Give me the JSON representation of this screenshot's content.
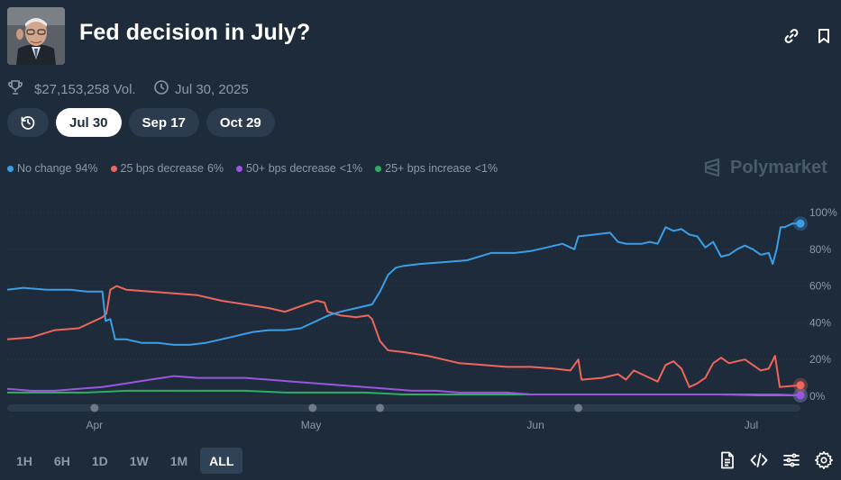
{
  "header": {
    "title": "Fed decision in July?",
    "volume": "$27,153,258 Vol.",
    "date": "Jul 30, 2025",
    "icons": [
      "link-icon",
      "bookmark-icon",
      "trophy-icon",
      "clock-icon"
    ]
  },
  "tabs": [
    {
      "label": "Jul 30",
      "active": true
    },
    {
      "label": "Sep 17",
      "active": false
    },
    {
      "label": "Oct 29",
      "active": false
    }
  ],
  "brand": "Polymarket",
  "range_buttons": [
    {
      "label": "1H",
      "active": false
    },
    {
      "label": "6H",
      "active": false
    },
    {
      "label": "1D",
      "active": false
    },
    {
      "label": "1W",
      "active": false
    },
    {
      "label": "1M",
      "active": false
    },
    {
      "label": "ALL",
      "active": true
    }
  ],
  "colors": {
    "no_change": "#3b9ee6",
    "decrease_25": "#f0665c",
    "decrease_50": "#9b55e0",
    "increase_25": "#2eae63",
    "background": "#1d2b3a"
  },
  "chart_data": {
    "type": "line",
    "x_tick_labels": [
      "Apr",
      "May",
      "Jun",
      "Jul"
    ],
    "y_tick_labels": [
      "0%",
      "20%",
      "40%",
      "60%",
      "80%",
      "100%"
    ],
    "ylim": [
      0,
      100
    ],
    "grid": true,
    "legend_position": "top-left",
    "x_domain": [
      0,
      100
    ],
    "x_ticks": [
      11,
      38.3,
      66.6,
      93.8
    ],
    "series": [
      {
        "name": "No change",
        "legend_value": "94%",
        "color": "#3b9ee6",
        "points": [
          [
            0,
            58
          ],
          [
            2,
            59
          ],
          [
            5,
            58
          ],
          [
            8,
            58
          ],
          [
            10,
            57
          ],
          [
            12,
            57
          ],
          [
            12.4,
            41
          ],
          [
            13,
            42
          ],
          [
            13.6,
            31
          ],
          [
            15,
            31
          ],
          [
            17,
            29
          ],
          [
            19,
            29
          ],
          [
            21,
            28
          ],
          [
            23,
            28
          ],
          [
            25,
            29
          ],
          [
            27,
            31
          ],
          [
            29,
            33
          ],
          [
            31,
            35
          ],
          [
            33,
            36
          ],
          [
            35,
            36
          ],
          [
            37,
            37
          ],
          [
            39,
            41
          ],
          [
            40.5,
            44
          ],
          [
            42,
            46
          ],
          [
            44,
            48
          ],
          [
            46,
            50
          ],
          [
            47,
            57
          ],
          [
            48,
            66
          ],
          [
            49,
            70
          ],
          [
            50,
            71
          ],
          [
            52,
            72
          ],
          [
            55,
            73
          ],
          [
            58,
            74
          ],
          [
            61,
            78
          ],
          [
            64,
            78
          ],
          [
            66,
            79
          ],
          [
            68,
            81
          ],
          [
            70,
            83
          ],
          [
            71.5,
            80
          ],
          [
            72,
            87
          ],
          [
            74,
            88
          ],
          [
            76,
            89
          ],
          [
            77,
            84
          ],
          [
            78,
            83
          ],
          [
            80,
            83
          ],
          [
            81,
            84
          ],
          [
            82,
            83
          ],
          [
            83,
            92
          ],
          [
            84,
            90
          ],
          [
            85,
            91
          ],
          [
            86,
            88
          ],
          [
            87,
            87
          ],
          [
            88,
            81
          ],
          [
            89,
            84
          ],
          [
            90,
            76
          ],
          [
            91,
            77
          ],
          [
            92,
            80
          ],
          [
            93,
            82
          ],
          [
            94,
            80
          ],
          [
            95,
            77
          ],
          [
            96,
            78
          ],
          [
            96.5,
            72
          ],
          [
            97,
            80
          ],
          [
            97.5,
            92
          ],
          [
            98,
            92
          ],
          [
            99,
            94
          ],
          [
            100,
            94
          ]
        ]
      },
      {
        "name": "25 bps decrease",
        "legend_value": "6%",
        "color": "#f0665c",
        "points": [
          [
            0,
            31
          ],
          [
            3,
            32
          ],
          [
            6,
            36
          ],
          [
            9,
            37
          ],
          [
            12,
            43
          ],
          [
            12.5,
            45
          ],
          [
            13,
            58
          ],
          [
            13.8,
            60
          ],
          [
            15,
            58
          ],
          [
            18,
            57
          ],
          [
            21,
            56
          ],
          [
            24,
            55
          ],
          [
            27,
            52
          ],
          [
            30,
            50
          ],
          [
            33,
            48
          ],
          [
            35,
            46
          ],
          [
            37,
            49
          ],
          [
            39,
            52
          ],
          [
            40,
            51
          ],
          [
            40.4,
            46
          ],
          [
            42,
            44
          ],
          [
            44,
            43
          ],
          [
            45.5,
            44
          ],
          [
            46,
            42
          ],
          [
            47,
            30
          ],
          [
            48,
            25
          ],
          [
            50,
            24
          ],
          [
            53,
            22
          ],
          [
            55,
            20
          ],
          [
            57,
            18
          ],
          [
            60,
            17
          ],
          [
            63,
            16
          ],
          [
            66,
            16
          ],
          [
            69,
            15
          ],
          [
            71,
            14
          ],
          [
            72,
            20
          ],
          [
            72.4,
            9
          ],
          [
            75,
            10
          ],
          [
            77,
            12
          ],
          [
            78,
            9
          ],
          [
            79,
            14
          ],
          [
            80,
            12
          ],
          [
            81,
            10
          ],
          [
            82,
            8
          ],
          [
            83,
            17
          ],
          [
            84,
            19
          ],
          [
            85,
            15
          ],
          [
            86,
            5
          ],
          [
            87,
            7
          ],
          [
            88,
            10
          ],
          [
            89,
            18
          ],
          [
            90,
            21
          ],
          [
            91,
            18
          ],
          [
            92,
            19
          ],
          [
            93,
            20
          ],
          [
            94,
            17
          ],
          [
            95,
            14
          ],
          [
            96,
            15
          ],
          [
            96.8,
            22
          ],
          [
            97.4,
            5
          ],
          [
            100,
            6
          ]
        ]
      },
      {
        "name": "50+ bps decrease",
        "legend_value": "<1%",
        "color": "#9b55e0",
        "points": [
          [
            0,
            4
          ],
          [
            3,
            3
          ],
          [
            6,
            3
          ],
          [
            9,
            4
          ],
          [
            12,
            5
          ],
          [
            15,
            7
          ],
          [
            18,
            9
          ],
          [
            21,
            11
          ],
          [
            24,
            10
          ],
          [
            27,
            10
          ],
          [
            30,
            10
          ],
          [
            33,
            9
          ],
          [
            36,
            8
          ],
          [
            39,
            7
          ],
          [
            42,
            6
          ],
          [
            45,
            5
          ],
          [
            48,
            4
          ],
          [
            51,
            3
          ],
          [
            54,
            3
          ],
          [
            57,
            2
          ],
          [
            60,
            2
          ],
          [
            63,
            2
          ],
          [
            66,
            1
          ],
          [
            70,
            1
          ],
          [
            74,
            1
          ],
          [
            78,
            1
          ],
          [
            82,
            1
          ],
          [
            86,
            1
          ],
          [
            90,
            1
          ],
          [
            94,
            1
          ],
          [
            97,
            1
          ],
          [
            100,
            0.5
          ]
        ]
      },
      {
        "name": "25+ bps increase",
        "legend_value": "<1%",
        "color": "#2eae63",
        "points": [
          [
            0,
            2
          ],
          [
            5,
            2
          ],
          [
            10,
            2
          ],
          [
            15,
            3
          ],
          [
            20,
            3
          ],
          [
            25,
            3
          ],
          [
            30,
            3
          ],
          [
            35,
            2
          ],
          [
            40,
            2
          ],
          [
            45,
            2
          ],
          [
            50,
            1
          ],
          [
            55,
            1
          ],
          [
            60,
            1
          ],
          [
            65,
            1
          ],
          [
            70,
            1
          ],
          [
            75,
            1
          ],
          [
            80,
            1
          ],
          [
            85,
            1
          ],
          [
            90,
            1
          ],
          [
            95,
            0.5
          ],
          [
            100,
            0.5
          ]
        ]
      }
    ]
  }
}
